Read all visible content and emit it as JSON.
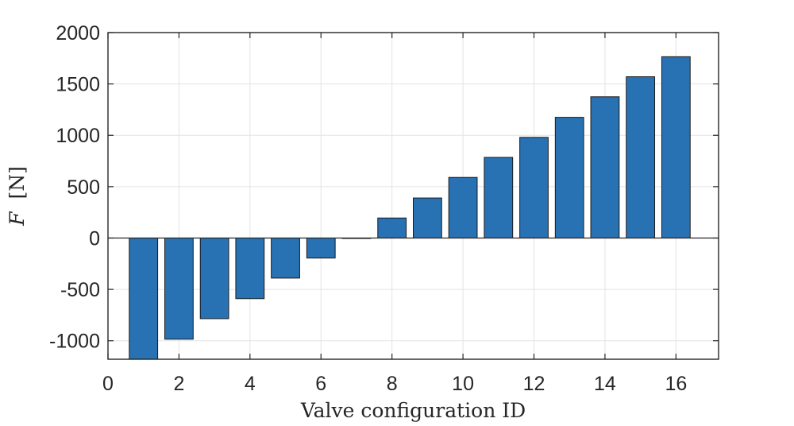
{
  "chart_data": {
    "type": "bar",
    "title": "",
    "xlabel": "Valve configuration ID",
    "ylabel_var": "F",
    "ylabel_unit": "[N]",
    "xlim": [
      0,
      17.2
    ],
    "ylim": [
      -1180,
      2000
    ],
    "x_ticks": [
      0,
      2,
      4,
      6,
      8,
      10,
      12,
      14,
      16
    ],
    "x_tick_labels": [
      "0",
      "2",
      "4",
      "6",
      "8",
      "10",
      "12",
      "14",
      "16"
    ],
    "y_ticks": [
      -1000,
      -500,
      0,
      500,
      1000,
      1500,
      2000
    ],
    "y_tick_labels": [
      "-1000",
      "-500",
      "0",
      "500",
      "1000",
      "1500",
      "2000"
    ],
    "grid": true,
    "bar_color": "#2872b4",
    "bar_edge_color": "#1a1a1a",
    "categories": [
      1,
      2,
      3,
      4,
      5,
      6,
      7,
      8,
      9,
      10,
      11,
      12,
      13,
      14,
      15,
      16
    ],
    "values": [
      -1180,
      -985,
      -785,
      -590,
      -390,
      -195,
      0,
      195,
      390,
      590,
      785,
      980,
      1175,
      1375,
      1570,
      1765
    ]
  }
}
